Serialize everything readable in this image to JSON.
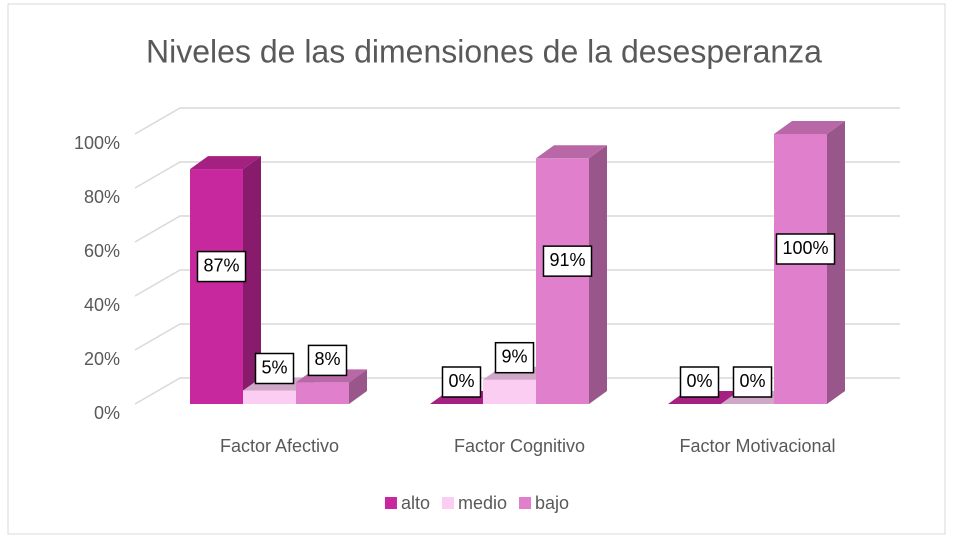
{
  "chart_data": {
    "type": "bar3d",
    "title": "Niveles de las dimensiones de la desesperanza",
    "categories": [
      "Factor Afectivo",
      "Factor Cognitivo",
      "Factor Motivacional"
    ],
    "series": [
      {
        "name": "alto",
        "color": "#c8289e",
        "values": [
          87,
          0,
          0
        ],
        "value_labels": [
          "87%",
          "0%",
          "0%"
        ]
      },
      {
        "name": "medio",
        "color": "#fbcdf2",
        "values": [
          5,
          9,
          0
        ],
        "value_labels": [
          "5%",
          "9%",
          "0%"
        ]
      },
      {
        "name": "bajo",
        "color": "#e07fcb",
        "values": [
          8,
          91,
          100
        ],
        "value_labels": [
          "8%",
          "91%",
          "100%"
        ]
      }
    ],
    "ylim": [
      0,
      100
    ],
    "yticks": [
      {
        "value": 0,
        "label": "0%"
      },
      {
        "value": 20,
        "label": "20%"
      },
      {
        "value": 40,
        "label": "40%"
      },
      {
        "value": 60,
        "label": "60%"
      },
      {
        "value": 80,
        "label": "80%"
      },
      {
        "value": 100,
        "label": "100%"
      }
    ],
    "grid": true,
    "legend": "bottom"
  }
}
